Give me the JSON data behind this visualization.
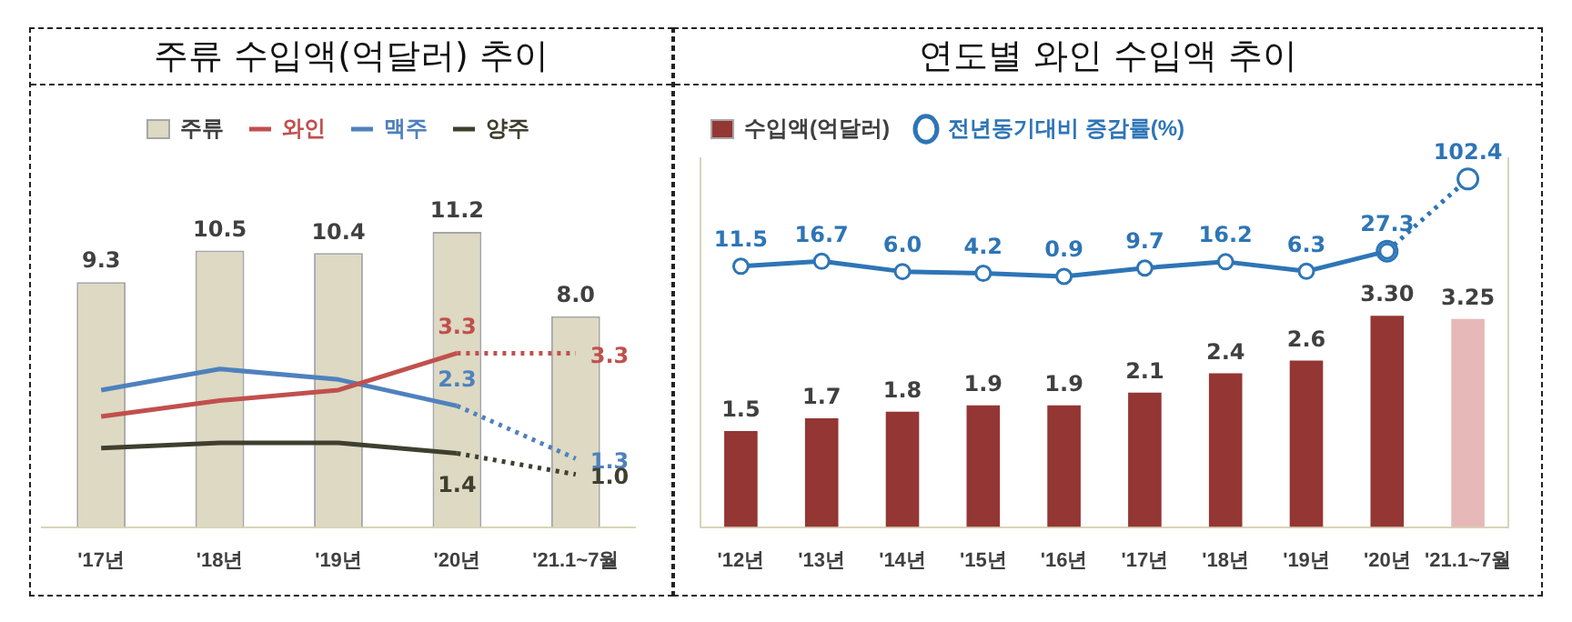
{
  "chart_data": [
    {
      "type": "bar",
      "title": "주류 수입액(억달러) 추이",
      "categories": [
        "'17년",
        "'18년",
        "'19년",
        "'20년",
        "'21.1~7월"
      ],
      "legend": "top",
      "grid": false,
      "tick_labels": "x",
      "marker": "none",
      "series": [
        {
          "name": "주류",
          "color": "#ddd9c3",
          "values": [
            9.3,
            10.5,
            10.4,
            11.2,
            8.0
          ],
          "value_labels": [
            "9.3",
            "10.5",
            "10.4",
            "11.2",
            "8.0"
          ]
        },
        {
          "name": "와인",
          "type": "line",
          "axis": "y2",
          "color": "#c0504d",
          "values": [
            2.1,
            2.4,
            2.6,
            3.3,
            null
          ],
          "value_labels": [
            null,
            null,
            null,
            "3.3",
            null
          ]
        },
        {
          "name": "맥주",
          "type": "line",
          "axis": "y2",
          "color": "#4f81bd",
          "values": [
            2.6,
            3.0,
            2.8,
            2.3,
            null
          ],
          "value_labels": [
            null,
            null,
            null,
            "2.3",
            null
          ]
        },
        {
          "name": "양주",
          "type": "line",
          "axis": "y2",
          "color": "#3f3f2f",
          "values": [
            1.5,
            1.6,
            1.6,
            1.4,
            null
          ],
          "value_labels": [
            null,
            null,
            null,
            "1.4",
            null
          ]
        },
        {
          "type": "line",
          "axis": "y2",
          "color": "#c0504d",
          "line_style": "dotted",
          "values": [
            null,
            null,
            null,
            3.3,
            3.3
          ],
          "value_labels": [
            null,
            null,
            null,
            null,
            "3.3"
          ]
        },
        {
          "type": "line",
          "axis": "y2",
          "color": "#4f81bd",
          "line_style": "dotted",
          "values": [
            null,
            null,
            null,
            2.3,
            1.3
          ],
          "value_labels": [
            null,
            null,
            null,
            null,
            "1.3"
          ]
        },
        {
          "type": "line",
          "axis": "y2",
          "color": "#3f3f2f",
          "line_style": "dotted",
          "values": [
            null,
            null,
            null,
            1.4,
            1.0
          ],
          "value_labels": [
            null,
            null,
            null,
            null,
            "1.0"
          ]
        }
      ]
    },
    {
      "type": "bar",
      "title": "연도별 와인 수입액 추이",
      "categories": [
        "'12년",
        "'13년",
        "'14년",
        "'15년",
        "'16년",
        "'17년",
        "'18년",
        "'19년",
        "'20년",
        "'21.1~7월"
      ],
      "legend": "top left",
      "grid": false,
      "tick_labels": "x",
      "marker": "circle",
      "ylim": [
        0,
        5.76
      ],
      "y2lim": [
        -260,
        124
      ],
      "series": [
        {
          "name": "수입액(억달러)",
          "color": "#943634",
          "colors": [
            "#943634",
            "#943634",
            "#943634",
            "#943634",
            "#943634",
            "#943634",
            "#943634",
            "#943634",
            "#943634",
            "#e6b9b8"
          ],
          "values": [
            1.5,
            1.7,
            1.8,
            1.9,
            1.9,
            2.1,
            2.4,
            2.6,
            3.3,
            3.25
          ],
          "value_labels": [
            "1.5",
            "1.7",
            "1.8",
            "1.9",
            "1.9",
            "2.1",
            "2.4",
            "2.6",
            "3.30",
            "3.25"
          ]
        },
        {
          "name": "전년동기대비 증감률(%)",
          "type": "line",
          "axis": "y2",
          "color": "#2e75b6",
          "values": [
            11.5,
            16.7,
            6.0,
            4.2,
            0.9,
            9.7,
            16.2,
            6.3,
            27.3,
            null
          ],
          "value_labels": [
            "11.5",
            "16.7",
            "6.0",
            "4.2",
            "0.9",
            "9.7",
            "16.2",
            "6.3",
            "27.3",
            null
          ]
        },
        {
          "type": "line",
          "axis": "y2",
          "color": "#2e75b6",
          "line_style": "dotted",
          "values": [
            null,
            null,
            null,
            null,
            null,
            null,
            null,
            null,
            27.3,
            102.4
          ],
          "value_labels": [
            null,
            null,
            null,
            null,
            null,
            null,
            null,
            null,
            null,
            "102.4"
          ]
        }
      ]
    }
  ]
}
